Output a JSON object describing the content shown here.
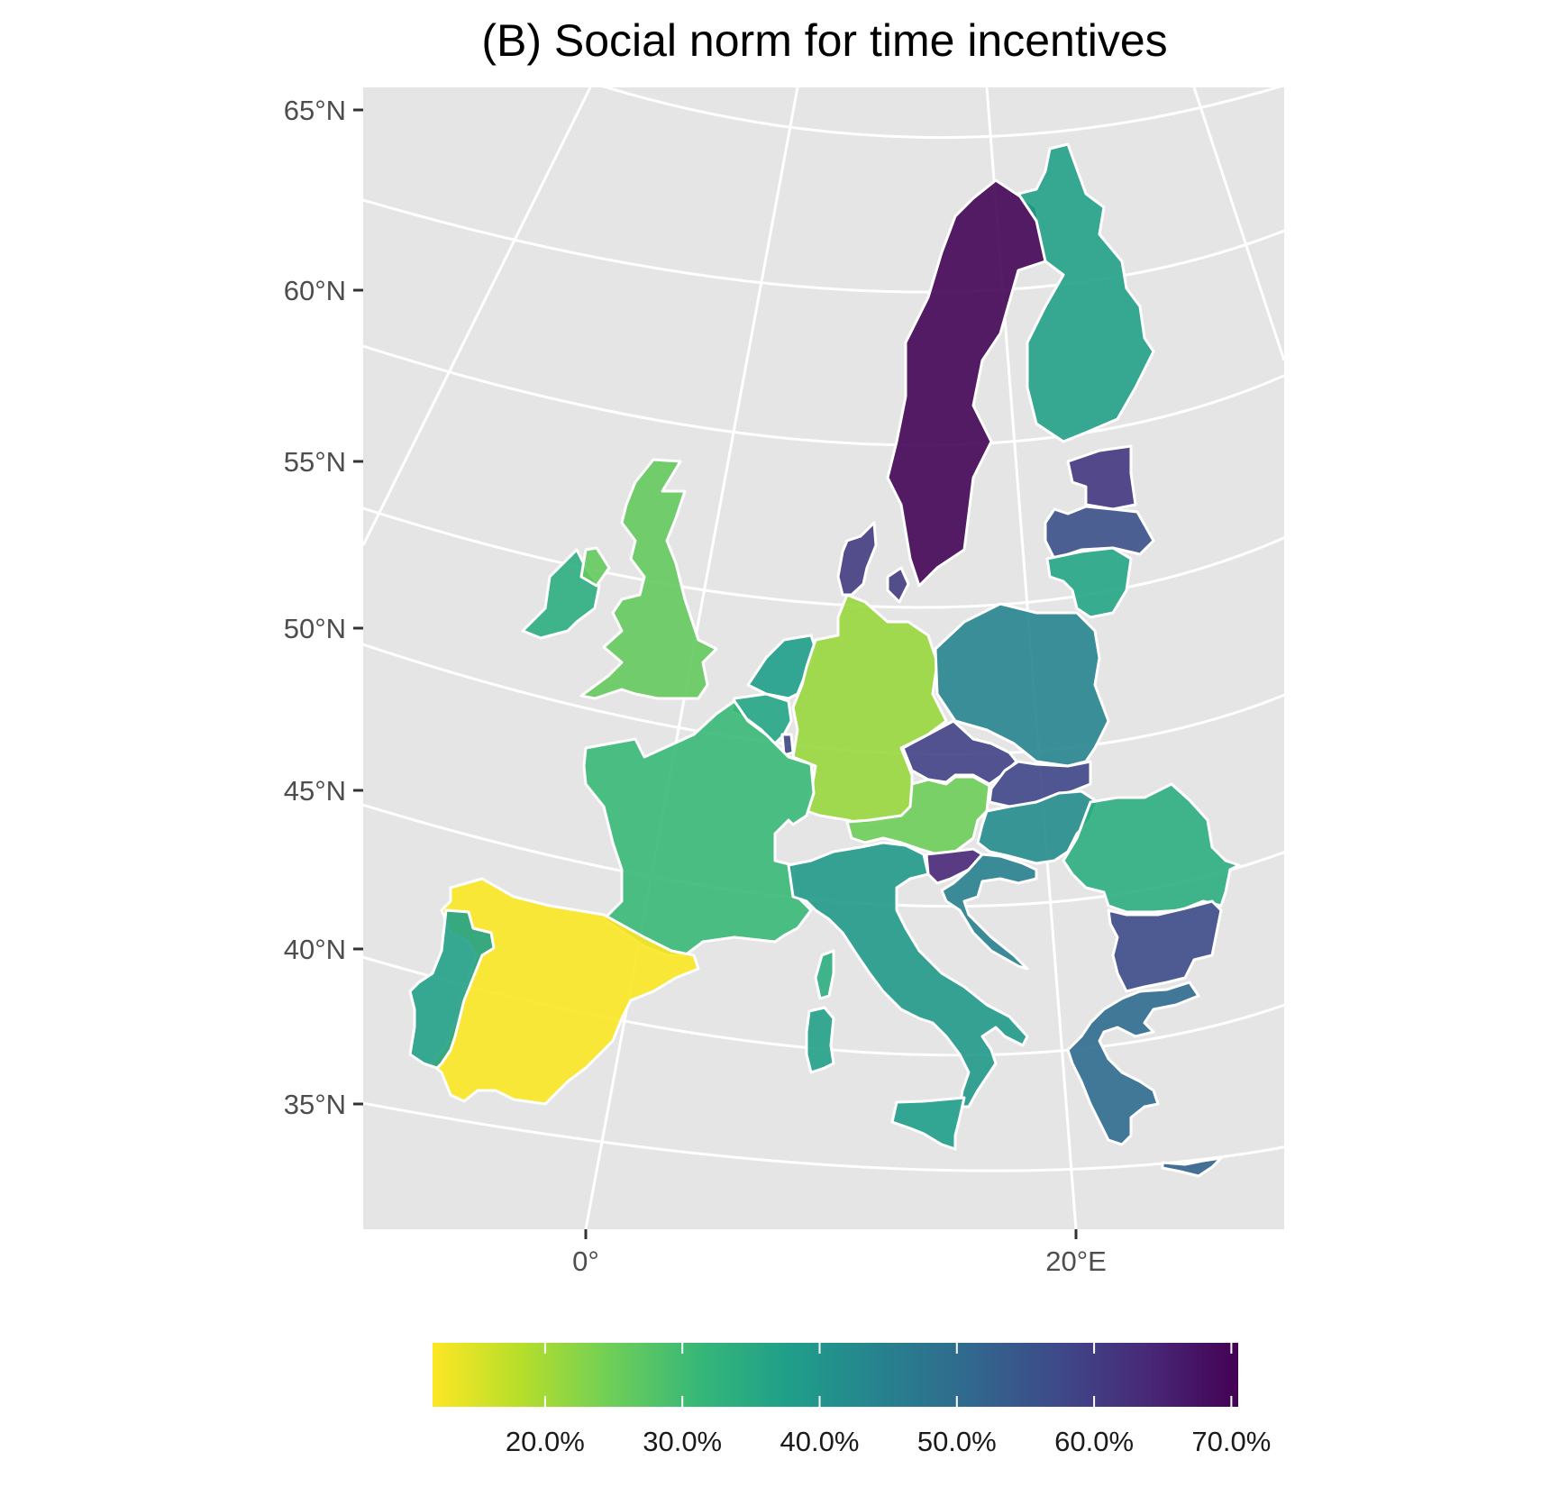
{
  "title": "(B) Social norm for time incentives",
  "lat_labels": [
    "65°N",
    "60°N",
    "55°N",
    "50°N",
    "45°N",
    "40°N",
    "35°N"
  ],
  "lon_labels": [
    "0°",
    "20°E"
  ],
  "colors": {
    "panel_bg": "#e5e5e5",
    "graticule": "#ffffff",
    "tick": "#333333",
    "viridis": [
      "#fde725",
      "#b5de2b",
      "#6ece58",
      "#35b779",
      "#1f9e89",
      "#26828e",
      "#31688e",
      "#3e4989",
      "#482878",
      "#440154"
    ]
  },
  "legend": {
    "labels": [
      "20.0%",
      "30.0%",
      "40.0%",
      "50.0%",
      "60.0%",
      "70.0%"
    ],
    "ticks": [
      0.2,
      0.3,
      0.4,
      0.5,
      0.6,
      0.7
    ],
    "min": 0.118,
    "max": 0.705
  },
  "countries": [
    {
      "name": "Sweden",
      "value": 0.7
    },
    {
      "name": "Finland",
      "value": 0.37
    },
    {
      "name": "Estonia",
      "value": 0.61
    },
    {
      "name": "Latvia",
      "value": 0.56
    },
    {
      "name": "Lithuania",
      "value": 0.36
    },
    {
      "name": "Denmark",
      "value": 0.6
    },
    {
      "name": "Denmark (Zealand)",
      "value": 0.6
    },
    {
      "name": "Ireland",
      "value": 0.34
    },
    {
      "name": "Northern Ireland",
      "value": 0.26
    },
    {
      "name": "United Kingdom",
      "value": 0.26
    },
    {
      "name": "Netherlands",
      "value": 0.38
    },
    {
      "name": "Belgium",
      "value": 0.36
    },
    {
      "name": "Luxembourg",
      "value": 0.58
    },
    {
      "name": "Germany",
      "value": 0.21
    },
    {
      "name": "Poland",
      "value": 0.44
    },
    {
      "name": "Czechia",
      "value": 0.59
    },
    {
      "name": "Slovakia",
      "value": 0.58
    },
    {
      "name": "Austria",
      "value": 0.25
    },
    {
      "name": "Hungary",
      "value": 0.42
    },
    {
      "name": "Slovenia",
      "value": 0.64
    },
    {
      "name": "Croatia",
      "value": 0.45
    },
    {
      "name": "Romania",
      "value": 0.34
    },
    {
      "name": "Bulgaria",
      "value": 0.57
    },
    {
      "name": "Greece",
      "value": 0.5
    },
    {
      "name": "Cyprus",
      "value": 0.52
    },
    {
      "name": "France",
      "value": 0.31
    },
    {
      "name": "Spain",
      "value": 0.12
    },
    {
      "name": "Portugal",
      "value": 0.37
    },
    {
      "name": "Italy",
      "value": 0.39
    },
    {
      "name": "Corsica",
      "value": 0.34
    },
    {
      "name": "Sardinia",
      "value": 0.37
    },
    {
      "name": "Sicily",
      "value": 0.38
    }
  ]
}
